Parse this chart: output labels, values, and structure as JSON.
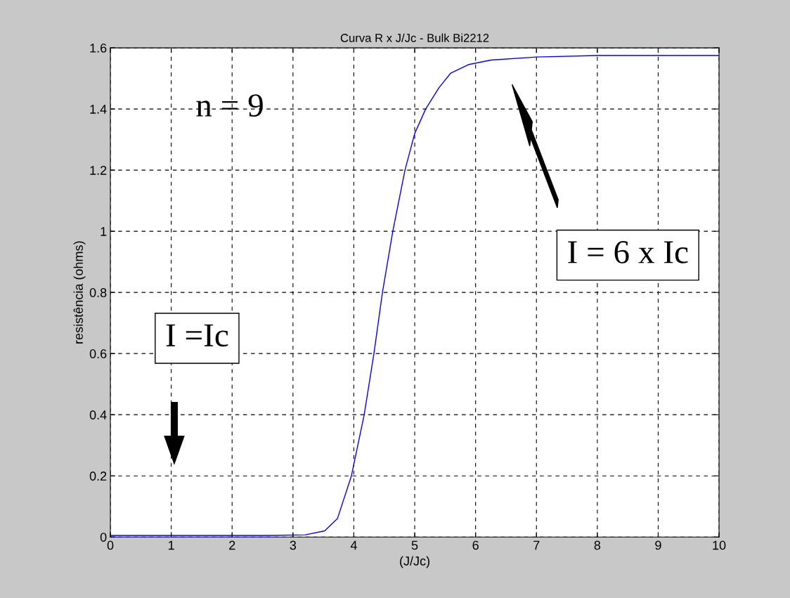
{
  "chart_data": {
    "type": "line",
    "title": "Curva R x J/Jc - Bulk Bi2212",
    "xlabel": "(J/Jc)",
    "ylabel": "resistência (ohms)",
    "series": [
      {
        "color": "#0000ff",
        "x": [
          0,
          1,
          2,
          2.58,
          3.2,
          3.52,
          3.73,
          3.96,
          4.17,
          4.33,
          4.47,
          4.64,
          4.84,
          5.0,
          5.18,
          5.4,
          5.59,
          5.88,
          6.25,
          7,
          8,
          10
        ],
        "values": [
          0.005,
          0.005,
          0.005,
          0.005,
          0.007,
          0.02,
          0.06,
          0.2,
          0.4,
          0.6,
          0.8,
          1.0,
          1.2,
          1.32,
          1.4,
          1.47,
          1.517,
          1.545,
          1.56,
          1.57,
          1.575,
          1.575
        ]
      }
    ],
    "xlim": [
      0,
      10
    ],
    "xticks": [
      0,
      1,
      2,
      3,
      4,
      5,
      6,
      7,
      8,
      9,
      10
    ],
    "ylim": [
      0,
      1.6
    ],
    "yticks": [
      0,
      0.2,
      0.4,
      0.6,
      0.8,
      1,
      1.2,
      1.4,
      1.6
    ],
    "grid": true,
    "marker": "none",
    "line_style": "solid",
    "annotations": [
      "n = 9",
      "I =Ic",
      "I = 6 x Ic"
    ]
  }
}
